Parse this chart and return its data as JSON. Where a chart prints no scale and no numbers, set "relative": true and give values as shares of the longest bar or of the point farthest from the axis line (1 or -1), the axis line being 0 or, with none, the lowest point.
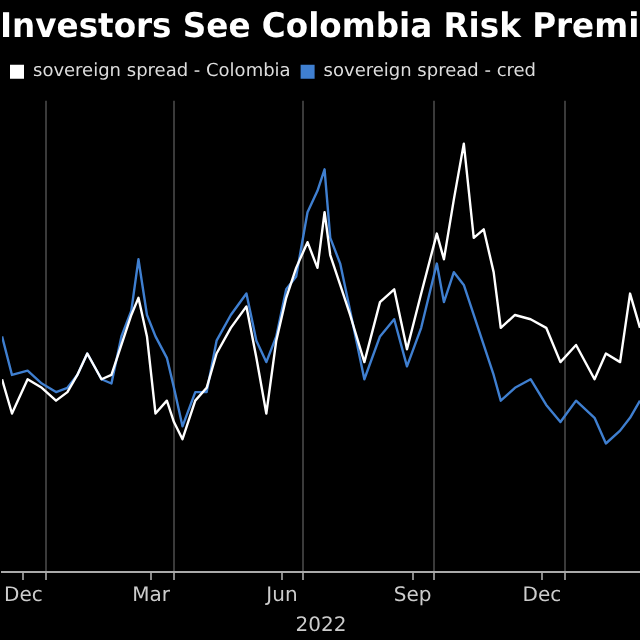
{
  "chart_data": {
    "type": "line",
    "title": "Investors See Colombia Risk Premi",
    "relative": true,
    "legend": "top left",
    "grid": "x",
    "marker": "none",
    "line_style": "solid",
    "x": [
      "2021-12-01",
      "2021-12-08",
      "2021-12-19",
      "2021-12-29",
      "2022-01-08",
      "2022-01-16",
      "2022-01-23",
      "2022-01-30",
      "2022-02-09",
      "2022-02-16",
      "2022-02-23",
      "2022-03-02",
      "2022-03-07",
      "2022-03-13",
      "2022-03-19",
      "2022-03-27",
      "2022-04-01",
      "2022-04-07",
      "2022-04-16",
      "2022-04-24",
      "2022-05-01",
      "2022-05-11",
      "2022-05-22",
      "2022-05-29",
      "2022-06-05",
      "2022-06-12",
      "2022-06-19",
      "2022-06-26",
      "2022-07-04",
      "2022-07-11",
      "2022-07-16",
      "2022-07-20",
      "2022-07-27",
      "2022-08-03",
      "2022-08-13",
      "2022-08-24",
      "2022-09-03",
      "2022-09-12",
      "2022-09-22",
      "2022-10-03",
      "2022-10-08",
      "2022-10-15",
      "2022-10-22",
      "2022-10-29",
      "2022-11-05",
      "2022-11-12",
      "2022-11-17",
      "2022-11-27",
      "2022-12-08",
      "2022-12-19",
      "2022-12-29",
      "2023-01-09",
      "2023-01-22",
      "2023-01-30",
      "2023-02-09",
      "2023-02-16",
      "2023-02-23"
    ],
    "xlim": [
      "2021-12-01",
      "2023-02-23"
    ],
    "xticks": [
      {
        "value": "2021-12-16",
        "label": "Dec"
      },
      {
        "value": "2022-01-01",
        "label": null
      },
      {
        "value": "2022-03-16",
        "label": "Mar"
      },
      {
        "value": "2022-04-01",
        "label": null
      },
      {
        "value": "2022-06-16",
        "label": "Jun"
      },
      {
        "value": "2022-07-01",
        "label": null
      },
      {
        "value": "2022-09-16",
        "label": "Sep"
      },
      {
        "value": "2022-10-01",
        "label": null
      },
      {
        "value": "2022-12-16",
        "label": "Dec"
      },
      {
        "value": "2023-01-01",
        "label": null
      }
    ],
    "series": [
      {
        "name": "sovereign spread - Colombia",
        "color": "#ffffff",
        "values": [
          0.45,
          0.37,
          0.45,
          0.43,
          0.4,
          0.42,
          0.46,
          0.51,
          0.45,
          0.46,
          0.53,
          0.6,
          0.64,
          0.55,
          0.37,
          0.4,
          0.35,
          0.31,
          0.4,
          0.43,
          0.51,
          0.57,
          0.62,
          0.5,
          0.37,
          0.54,
          0.64,
          0.71,
          0.77,
          0.71,
          0.84,
          0.74,
          0.67,
          0.6,
          0.49,
          0.63,
          0.66,
          0.52,
          0.65,
          0.79,
          0.73,
          0.87,
          1,
          0.78,
          0.8,
          0.7,
          0.57,
          0.6,
          0.59,
          0.57,
          0.49,
          0.53,
          0.45,
          0.51,
          0.49,
          0.65,
          0.57
        ]
      },
      {
        "name": "sovereign spread - cred",
        "color": "#3f7fd0",
        "values": [
          0.55,
          0.46,
          0.47,
          0.44,
          0.42,
          0.43,
          0.46,
          0.51,
          0.45,
          0.44,
          0.55,
          0.61,
          0.73,
          0.6,
          0.55,
          0.5,
          0.43,
          0.34,
          0.42,
          0.42,
          0.54,
          0.6,
          0.65,
          0.54,
          0.49,
          0.55,
          0.66,
          0.69,
          0.84,
          0.89,
          0.94,
          0.78,
          0.72,
          0.61,
          0.45,
          0.55,
          0.59,
          0.48,
          0.57,
          0.72,
          0.63,
          0.7,
          0.67,
          0.6,
          0.53,
          0.46,
          0.4,
          0.43,
          0.45,
          0.39,
          0.35,
          0.4,
          0.36,
          0.3,
          0.33,
          0.36,
          0.4
        ]
      }
    ],
    "annotations": [
      "2022"
    ]
  }
}
